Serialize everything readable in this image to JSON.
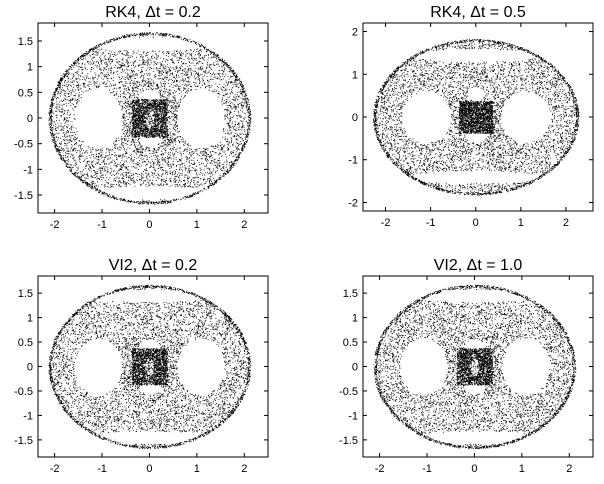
{
  "chart_data": [
    {
      "type": "scatter",
      "title": "RK4, Δt = 0.2",
      "xlim": [
        -2.35,
        2.5
      ],
      "ylim": [
        -1.85,
        1.85
      ],
      "xticks": [
        -2,
        -1,
        0,
        1,
        2
      ],
      "yticks": [
        -1.5,
        -1,
        -0.5,
        0,
        0.5,
        1,
        1.5
      ],
      "xtick_labels": [
        "-2",
        "-1",
        "0",
        "1",
        "2"
      ],
      "ytick_labels": [
        "-1.5",
        "-1",
        "-0.5",
        "0",
        "0.5",
        "1",
        "1.5"
      ],
      "grid": false,
      "marker_color": "#000000",
      "description_shape": "ring",
      "boundary": {
        "rx": 2.1,
        "ry": 1.65
      },
      "holes": [
        {
          "cx": -1.08,
          "cy": 0.0,
          "rx": 0.5,
          "ry": 0.58
        },
        {
          "cx": 1.08,
          "cy": 0.0,
          "rx": 0.5,
          "ry": 0.58
        },
        {
          "cx": 0.0,
          "cy": 1.45,
          "rx": 1.45,
          "ry": 0.13
        },
        {
          "cx": 0.0,
          "cy": -1.45,
          "rx": 1.45,
          "ry": 0.13
        },
        {
          "cx": 0.0,
          "cy": 0.42,
          "rx": 0.22,
          "ry": 0.14
        },
        {
          "cx": 0.0,
          "cy": -0.42,
          "rx": 0.22,
          "ry": 0.14
        }
      ]
    },
    {
      "type": "scatter",
      "title": "RK4, Δt = 0.5",
      "xlim": [
        -2.5,
        2.6
      ],
      "ylim": [
        -2.2,
        2.2
      ],
      "xticks": [
        -2,
        -1,
        0,
        1,
        2
      ],
      "yticks": [
        -2,
        -1,
        0,
        1,
        2
      ],
      "xtick_labels": [
        "-2",
        "-1",
        "0",
        "1",
        "2"
      ],
      "ytick_labels": [
        "-2",
        "-1",
        "0",
        "1",
        "2"
      ],
      "grid": false,
      "marker_color": "#000000",
      "boundary": {
        "rx": 2.25,
        "ry": 1.8
      },
      "holes": [
        {
          "cx": -1.1,
          "cy": 0.0,
          "rx": 0.55,
          "ry": 0.6
        },
        {
          "cx": 1.1,
          "cy": 0.0,
          "rx": 0.55,
          "ry": 0.6
        },
        {
          "cx": 0.0,
          "cy": 1.45,
          "rx": 1.45,
          "ry": 0.15
        },
        {
          "cx": 0.0,
          "cy": -1.4,
          "rx": 1.45,
          "ry": 0.15
        },
        {
          "cx": 0.0,
          "cy": 0.55,
          "rx": 0.2,
          "ry": 0.15
        },
        {
          "cx": 0.0,
          "cy": -0.4,
          "rx": 0.25,
          "ry": 0.2
        }
      ]
    },
    {
      "type": "scatter",
      "title": "VI2, Δt = 0.2",
      "xlim": [
        -2.35,
        2.5
      ],
      "ylim": [
        -1.85,
        1.85
      ],
      "xticks": [
        -2,
        -1,
        0,
        1,
        2
      ],
      "yticks": [
        -1.5,
        -1,
        -0.5,
        0,
        0.5,
        1,
        1.5
      ],
      "xtick_labels": [
        "-2",
        "-1",
        "0",
        "1",
        "2"
      ],
      "ytick_labels": [
        "-1.5",
        "-1",
        "-0.5",
        "0",
        "0.5",
        "1",
        "1.5"
      ],
      "grid": false,
      "marker_color": "#000000",
      "boundary": {
        "rx": 2.1,
        "ry": 1.65
      },
      "holes": [
        {
          "cx": -1.08,
          "cy": 0.0,
          "rx": 0.5,
          "ry": 0.58
        },
        {
          "cx": 1.08,
          "cy": 0.0,
          "rx": 0.5,
          "ry": 0.58
        },
        {
          "cx": 0.0,
          "cy": 1.45,
          "rx": 1.45,
          "ry": 0.13
        },
        {
          "cx": 0.0,
          "cy": -1.45,
          "rx": 1.45,
          "ry": 0.13
        },
        {
          "cx": 0.0,
          "cy": 0.42,
          "rx": 0.22,
          "ry": 0.14
        },
        {
          "cx": 0.0,
          "cy": -0.42,
          "rx": 0.22,
          "ry": 0.14
        }
      ]
    },
    {
      "type": "scatter",
      "title": "VI2, Δt = 1.0",
      "xlim": [
        -2.35,
        2.5
      ],
      "ylim": [
        -1.85,
        1.85
      ],
      "xticks": [
        -2,
        -1,
        0,
        1,
        2
      ],
      "yticks": [
        -1.5,
        -1,
        -0.5,
        0,
        0.5,
        1,
        1.5
      ],
      "xtick_labels": [
        "-2",
        "-1",
        "0",
        "1",
        "2"
      ],
      "ytick_labels": [
        "-1.5",
        "-1",
        "-0.5",
        "0",
        "0.5",
        "1",
        "1.5"
      ],
      "grid": false,
      "marker_color": "#000000",
      "boundary": {
        "rx": 2.1,
        "ry": 1.65
      },
      "holes": [
        {
          "cx": -1.08,
          "cy": 0.0,
          "rx": 0.5,
          "ry": 0.58
        },
        {
          "cx": 1.08,
          "cy": 0.0,
          "rx": 0.5,
          "ry": 0.58
        },
        {
          "cx": 0.0,
          "cy": 1.45,
          "rx": 1.45,
          "ry": 0.13
        },
        {
          "cx": 0.0,
          "cy": -1.45,
          "rx": 1.45,
          "ry": 0.13
        },
        {
          "cx": 0.0,
          "cy": 0.42,
          "rx": 0.22,
          "ry": 0.14
        },
        {
          "cx": 0.0,
          "cy": -0.42,
          "rx": 0.22,
          "ry": 0.14
        }
      ]
    }
  ]
}
